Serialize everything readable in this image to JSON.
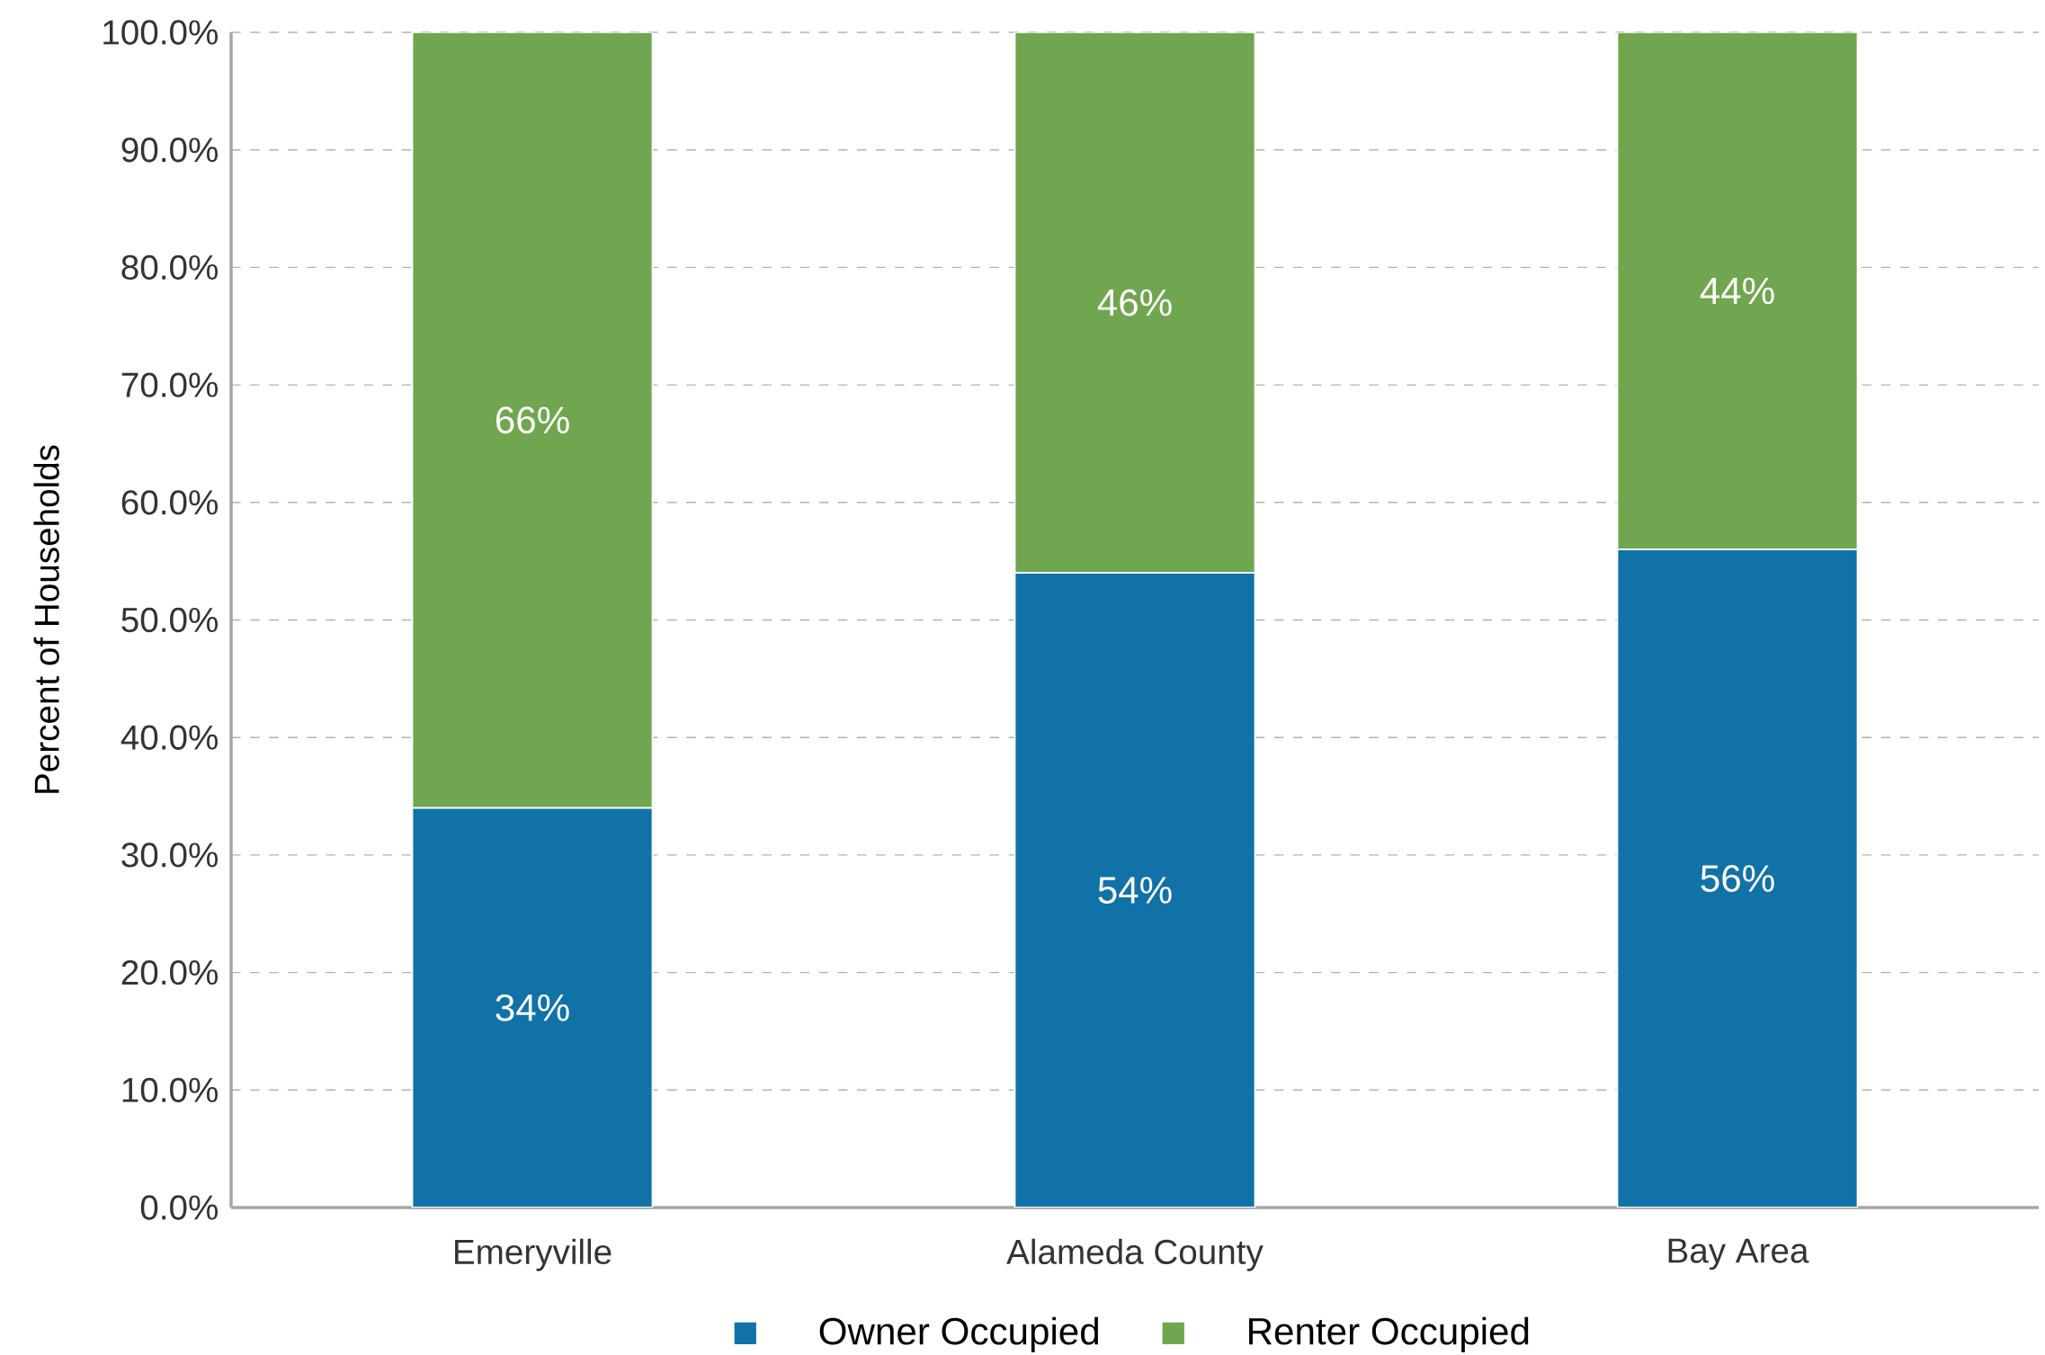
{
  "chart_data": {
    "type": "bar",
    "stacked": true,
    "ylabel": "Percent of Households",
    "categories": [
      "Emeryville",
      "Alameda County",
      "Bay Area"
    ],
    "series": [
      {
        "name": "Owner Occupied",
        "color": "#1172a8",
        "values": [
          34,
          54,
          56
        ],
        "value_labels": [
          "34%",
          "54%",
          "56%"
        ]
      },
      {
        "name": "Renter Occupied",
        "color": "#70a64f",
        "values": [
          66,
          46,
          44
        ],
        "value_labels": [
          "66%",
          "46%",
          "44%"
        ]
      }
    ],
    "ylim": [
      0,
      100
    ],
    "yticks": [
      {
        "value": 0,
        "label": "0.0%"
      },
      {
        "value": 10,
        "label": "10.0%"
      },
      {
        "value": 20,
        "label": "20.0%"
      },
      {
        "value": 30,
        "label": "30.0%"
      },
      {
        "value": 40,
        "label": "40.0%"
      },
      {
        "value": 50,
        "label": "50.0%"
      },
      {
        "value": 60,
        "label": "60.0%"
      },
      {
        "value": 70,
        "label": "70.0%"
      },
      {
        "value": 80,
        "label": "80.0%"
      },
      {
        "value": 90,
        "label": "90.0%"
      },
      {
        "value": 100,
        "label": "100.0%"
      }
    ],
    "grid": "y",
    "legend": "bottom"
  }
}
